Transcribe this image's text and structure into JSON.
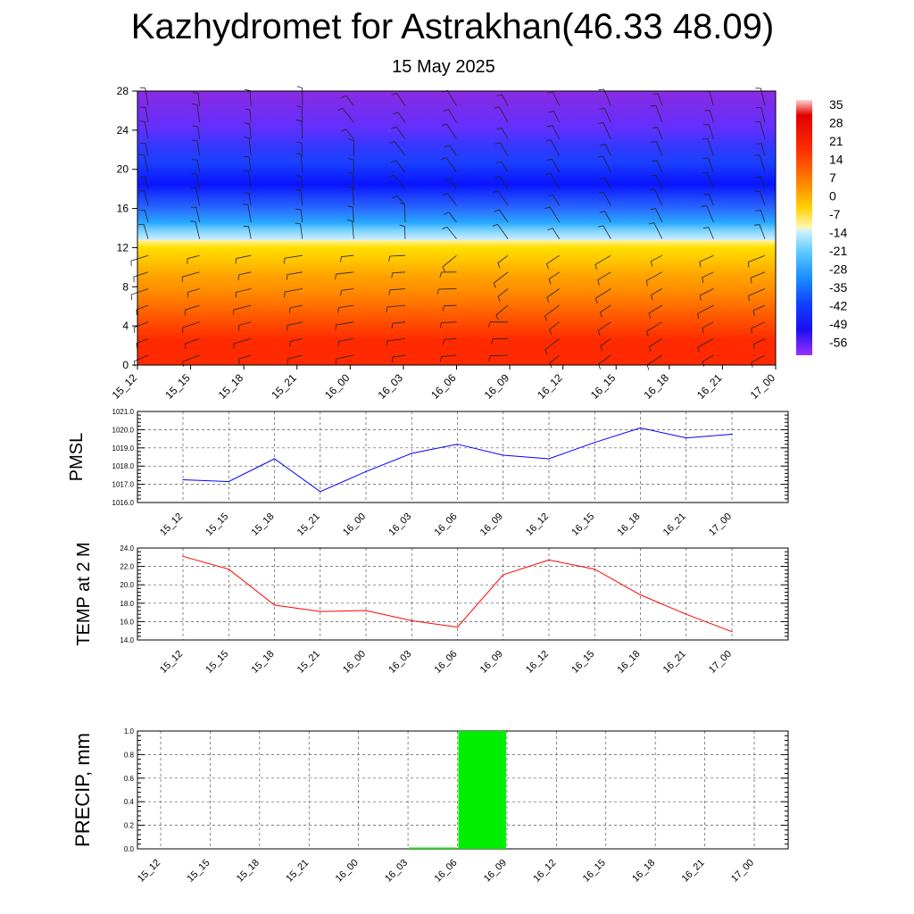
{
  "header": {
    "title": "Kazhydromet for Astrakhan(46.33 48.09)",
    "date": "15 May 2025"
  },
  "time_labels": [
    "15_12",
    "15_15",
    "15_18",
    "15_21",
    "16_00",
    "16_03",
    "16_06",
    "16_09",
    "16_12",
    "16_15",
    "16_18",
    "16_21",
    "17_00"
  ],
  "chart_data": [
    {
      "type": "heatmap",
      "y_ticks": [
        0,
        4,
        8,
        12,
        16,
        20,
        24,
        28
      ],
      "ylim": [
        0,
        28
      ],
      "colorbar_labels": [
        "35",
        "28",
        "21",
        "14",
        "7",
        "0",
        "-7",
        "-14",
        "-21",
        "-28",
        "-35",
        "-42",
        "-49",
        "-56"
      ],
      "colors": {
        "warm_low": "#ff2a00",
        "warm_mid": "#ffc400",
        "warm_top": "#fff3a0",
        "cold_bottom": "#cfeefe",
        "cold_mid": "#2a6bff",
        "cold_core": "#0a14ff",
        "cold_top": "#8a2be2"
      }
    },
    {
      "type": "line",
      "ylabel": "PMSL",
      "ylim": [
        1016.0,
        1021.0
      ],
      "y_ticks": [
        "1016.0",
        "1017.0",
        "1018.0",
        "1019.0",
        "1020.0",
        "1021.0"
      ],
      "series": [
        {
          "values": [
            1017.25,
            1017.15,
            1018.4,
            1016.6,
            1017.7,
            1018.7,
            1019.2,
            1018.6,
            1018.4,
            1019.3,
            1020.1,
            1019.55,
            1019.75
          ],
          "color": "#0000ff"
        }
      ]
    },
    {
      "type": "line",
      "ylabel": "TEMP at 2 M",
      "ylim": [
        14.0,
        24.0
      ],
      "y_ticks": [
        "14.0",
        "16.0",
        "18.0",
        "20.0",
        "22.0",
        "24.0"
      ],
      "series": [
        {
          "values": [
            23.1,
            21.7,
            17.8,
            17.1,
            17.2,
            16.1,
            15.4,
            21.1,
            22.7,
            21.7,
            18.9,
            16.8,
            14.9
          ],
          "color": "#ff0000"
        }
      ]
    },
    {
      "type": "bar",
      "ylabel": "PRECIP, mm",
      "ylim": [
        0.0,
        1.0
      ],
      "y_ticks": [
        "0.0",
        "0.2",
        "0.4",
        "0.6",
        "0.8",
        "1.0"
      ],
      "values": [
        0,
        0,
        0,
        0,
        0,
        0.01,
        1.0,
        0,
        0,
        0,
        0,
        0,
        0
      ],
      "color": "#00ee00"
    }
  ]
}
